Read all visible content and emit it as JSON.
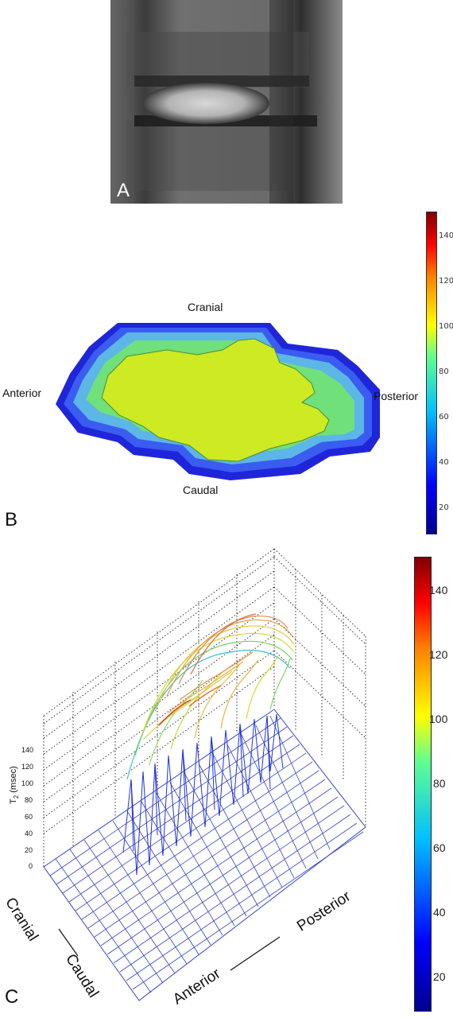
{
  "panels": {
    "a": {
      "letter": "A"
    },
    "b": {
      "letter": "B",
      "labels": {
        "cranial": "Cranial",
        "caudal": "Caudal",
        "anterior": "Anterior",
        "posterior": "Posterior"
      },
      "colorbar_ticks": [
        "20",
        "40",
        "60",
        "80",
        "100",
        "120",
        "140"
      ]
    },
    "c": {
      "letter": "C",
      "z_axis_label": "T",
      "z_axis_subscript": "2",
      "z_axis_unit": " (msec)",
      "z_ticks": [
        "0",
        "20",
        "40",
        "60",
        "80",
        "100",
        "120",
        "140"
      ],
      "labels": {
        "cranial": "Cranial",
        "caudal": "Caudal",
        "anterior": "Anterior",
        "posterior": "Posterior"
      },
      "colorbar_ticks": [
        "20",
        "40",
        "60",
        "80",
        "100",
        "120",
        "140"
      ]
    }
  },
  "colormap": "jet",
  "colorbar_range": [
    10,
    150
  ]
}
